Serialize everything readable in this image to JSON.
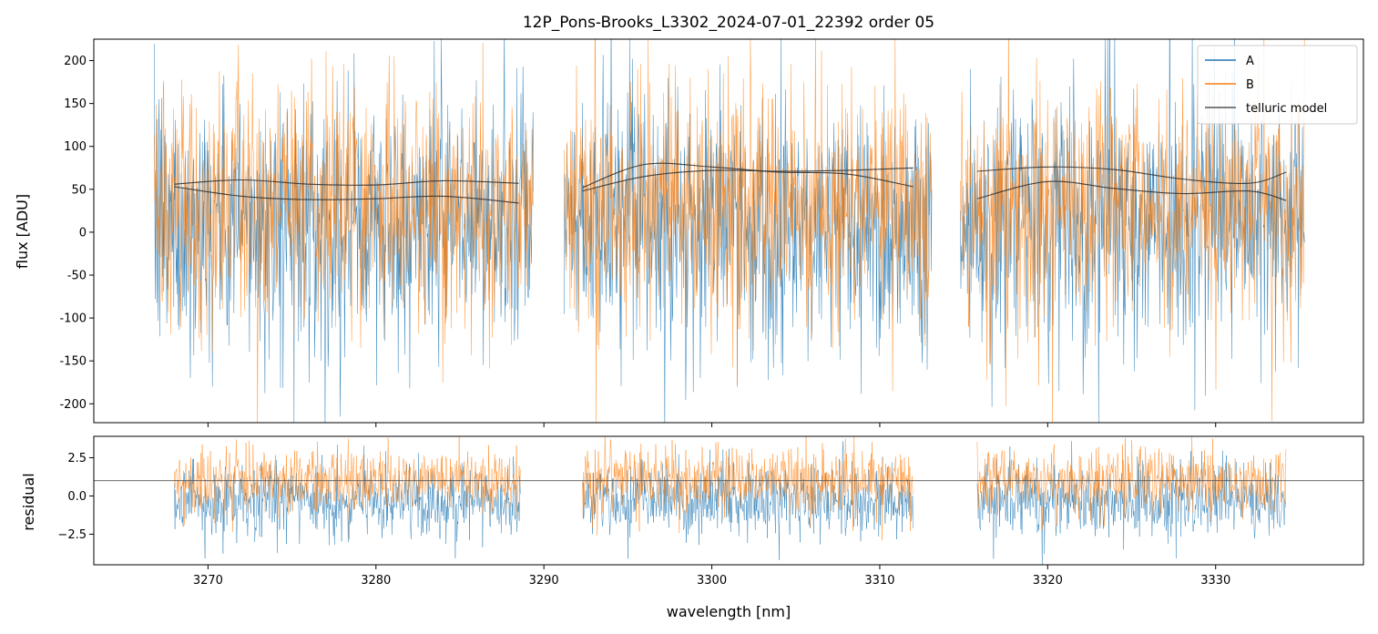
{
  "chart_data": [
    {
      "type": "line",
      "panel": "top",
      "title": "12P_Pons-Brooks_L3302_2024-07-01_22392  order 05",
      "xlabel": "",
      "ylabel": "flux [ADU]",
      "xlim": [
        3263.2,
        3338.8
      ],
      "ylim": [
        -222,
        225
      ],
      "yticks": [
        -200,
        -150,
        -100,
        -50,
        0,
        50,
        100,
        150,
        200
      ],
      "xticks": [
        3270,
        3280,
        3290,
        3300,
        3310,
        3320,
        3330
      ],
      "segments": [
        {
          "x0": 3266.8,
          "x1": 3289.4
        },
        {
          "x0": 3291.2,
          "x1": 3313.1
        },
        {
          "x0": 3314.8,
          "x1": 3335.3
        }
      ],
      "series": [
        {
          "name": "A",
          "color": "#1f77b4",
          "center": 10,
          "spread": 95,
          "style": "noisy spectrum"
        },
        {
          "name": "B",
          "color": "#ff7f0e",
          "center": 32,
          "spread": 90,
          "style": "noisy spectrum"
        },
        {
          "name": "telluric model",
          "color": "#333333",
          "curves": [
            {
              "x": [
                3268,
                3272,
                3276,
                3280,
                3284,
                3288.5
              ],
              "y": [
                56,
                61,
                56,
                55,
                60,
                57
              ]
            },
            {
              "x": [
                3268,
                3272,
                3276,
                3280,
                3284,
                3288.5
              ],
              "y": [
                53,
                42,
                38,
                39,
                42,
                34
              ]
            },
            {
              "x": [
                3292.3,
                3296,
                3300,
                3304,
                3308,
                3312
              ],
              "y": [
                52,
                79,
                76,
                70,
                68,
                53
              ]
            },
            {
              "x": [
                3292.3,
                3296,
                3300,
                3304,
                3308,
                3312
              ],
              "y": [
                48,
                65,
                72,
                71,
                72,
                75
              ]
            },
            {
              "x": [
                3315.8,
                3320,
                3324,
                3328,
                3332,
                3334.2
              ],
              "y": [
                71,
                76,
                73,
                62,
                57,
                70
              ]
            },
            {
              "x": [
                3315.8,
                3320,
                3324,
                3328,
                3332,
                3334.2
              ],
              "y": [
                39,
                59,
                51,
                45,
                48,
                37
              ]
            }
          ]
        }
      ],
      "legend": {
        "loc": "upper right",
        "entries": [
          "A",
          "B",
          "telluric model"
        ]
      }
    },
    {
      "type": "line",
      "panel": "bottom",
      "xlabel": "wavelength [nm]",
      "ylabel": "residual",
      "xlim": [
        3263.2,
        3338.8
      ],
      "ylim": [
        -4.5,
        3.9
      ],
      "yticks": [
        -2.5,
        0.0,
        2.5
      ],
      "ytick_labels": [
        "−2.5",
        "0.0",
        "2.5"
      ],
      "xticks": [
        3270,
        3280,
        3290,
        3300,
        3310,
        3320,
        3330
      ],
      "reference_line": 1.0,
      "segments": [
        {
          "x0": 3268.0,
          "x1": 3288.6
        },
        {
          "x0": 3292.3,
          "x1": 3312.0
        },
        {
          "x0": 3315.8,
          "x1": 3334.2
        }
      ],
      "series": [
        {
          "name": "A",
          "color": "#1f77b4",
          "center": -0.3,
          "spread": 1.5
        },
        {
          "name": "B",
          "color": "#ff7f0e",
          "center": 1.0,
          "spread": 1.4
        }
      ]
    }
  ]
}
